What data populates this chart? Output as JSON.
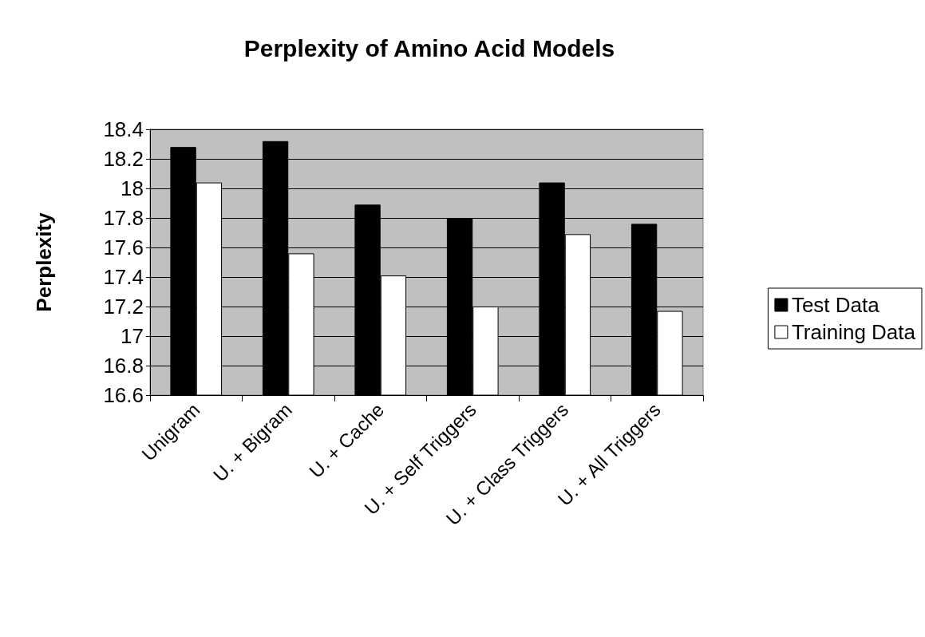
{
  "chart_data": {
    "type": "bar",
    "title": "Perplexity of Amino Acid Models",
    "ylabel": "Perplexity",
    "categories": [
      "Unigram",
      "U. + Bigram",
      "U. + Cache",
      "U. + Self Triggers",
      "U. + Class Triggers",
      "U. + All Triggers"
    ],
    "series": [
      {
        "name": "Test Data",
        "color": "#000000",
        "values": [
          18.28,
          18.32,
          17.89,
          17.8,
          18.04,
          17.76
        ]
      },
      {
        "name": "Training Data",
        "color": "#ffffff",
        "values": [
          18.04,
          17.56,
          17.41,
          17.2,
          17.69,
          17.17
        ]
      }
    ],
    "ylim": [
      16.6,
      18.4
    ],
    "yticks": [
      16.6,
      16.8,
      17,
      17.2,
      17.4,
      17.6,
      17.8,
      18,
      18.2,
      18.4
    ],
    "grid": "y",
    "legend": "right"
  }
}
